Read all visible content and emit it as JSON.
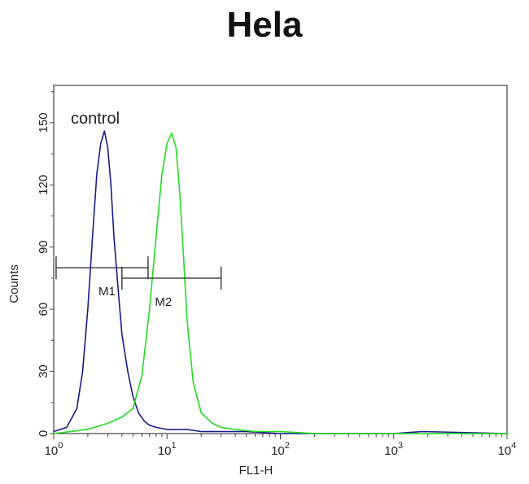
{
  "chart_data": {
    "type": "line",
    "title": "Hela",
    "xlabel": "FL1-H",
    "ylabel": "Counts",
    "x_scale": "log",
    "xlim": [
      1,
      10000
    ],
    "ylim": [
      0,
      168
    ],
    "x_ticks": [
      {
        "base": "10",
        "exp": "0",
        "value": 1
      },
      {
        "base": "10",
        "exp": "1",
        "value": 10
      },
      {
        "base": "10",
        "exp": "2",
        "value": 100
      },
      {
        "base": "10",
        "exp": "3",
        "value": 1000
      },
      {
        "base": "10",
        "exp": "4",
        "value": 10000
      }
    ],
    "y_ticks": [
      "0",
      "30",
      "60",
      "90",
      "120",
      "150"
    ],
    "annotations": {
      "control": "control"
    },
    "series": [
      {
        "name": "control",
        "color": "#1a1a8c",
        "x": [
          1.0,
          1.3,
          1.6,
          1.8,
          2.0,
          2.2,
          2.4,
          2.6,
          2.8,
          3.0,
          3.2,
          3.4,
          3.7,
          4.0,
          4.5,
          5.0,
          5.6,
          6.3,
          7.0,
          8.0,
          10.0,
          12.0,
          15.0,
          20.0,
          30.0,
          50.0,
          100.0,
          300.0,
          1000.0,
          1800.0,
          10000.0
        ],
        "y": [
          1,
          3,
          12,
          30,
          60,
          95,
          125,
          140,
          146,
          138,
          120,
          95,
          70,
          48,
          30,
          18,
          10,
          6,
          4,
          3,
          2,
          2,
          2,
          1,
          1,
          1,
          0,
          0,
          0,
          1,
          0
        ]
      },
      {
        "name": "",
        "color": "#22dd22",
        "x": [
          1.0,
          2.0,
          3.0,
          4.0,
          5.0,
          6.0,
          7.0,
          8.0,
          9.0,
          10.0,
          11.0,
          12.0,
          13.0,
          14.0,
          15.0,
          17.0,
          20.0,
          25.0,
          30.0,
          40.0,
          60.0,
          100.0,
          200.0,
          500.0,
          1000.0,
          10000.0
        ],
        "y": [
          0,
          2,
          5,
          8,
          12,
          28,
          60,
          95,
          125,
          140,
          145,
          138,
          115,
          85,
          55,
          25,
          10,
          5,
          3,
          2,
          1,
          1,
          0,
          0,
          0,
          0
        ]
      }
    ],
    "markers": [
      {
        "label": "M1",
        "x_start": 1.05,
        "x_end": 6.8,
        "y": 80
      },
      {
        "label": "M2",
        "x_start": 4.0,
        "x_end": 30.0,
        "y": 75
      }
    ]
  }
}
